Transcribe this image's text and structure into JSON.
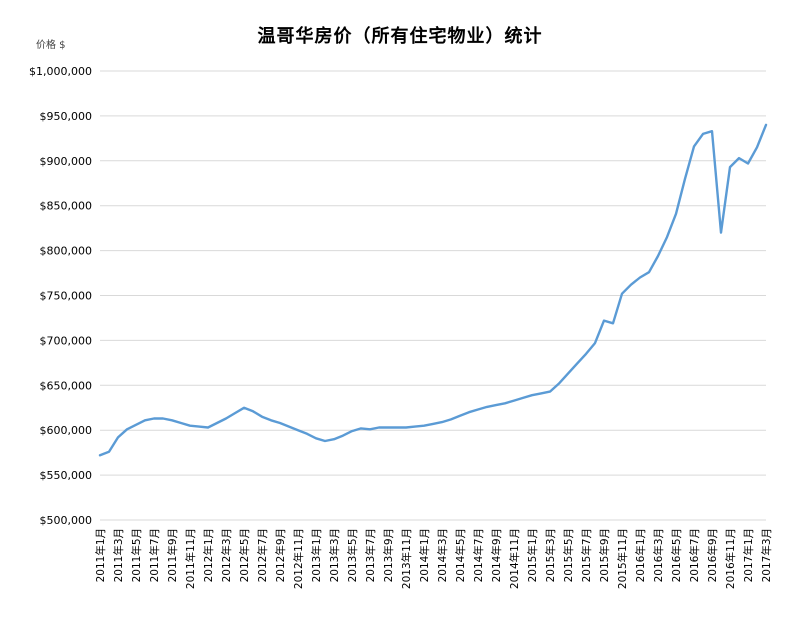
{
  "header": {
    "title": "温哥华房价（所有住宅物业）统计",
    "y_axis_unit": "价格 $"
  },
  "chart_data": {
    "type": "line",
    "title": "温哥华房价（所有住宅物业）统计",
    "ylabel": "价格 $",
    "xlabel": "",
    "ylim": [
      500000,
      1000000
    ],
    "ytick_step": 50000,
    "ytick_labels": [
      "$500,000",
      "$550,000",
      "$600,000",
      "$650,000",
      "$700,000",
      "$750,000",
      "$800,000",
      "$850,000",
      "$900,000",
      "$950,000",
      "$1,000,000"
    ],
    "x_tick_every": 2,
    "grid": "horizontal",
    "legend_position": "none",
    "line_color": "#5b9bd5",
    "grid_color": "#d9d9d9",
    "x": [
      "2011年1月",
      "2011年2月",
      "2011年3月",
      "2011年4月",
      "2011年5月",
      "2011年6月",
      "2011年7月",
      "2011年8月",
      "2011年9月",
      "2011年10月",
      "2011年11月",
      "2011年12月",
      "2012年1月",
      "2012年2月",
      "2012年3月",
      "2012年4月",
      "2012年5月",
      "2012年6月",
      "2012年7月",
      "2012年8月",
      "2012年9月",
      "2012年10月",
      "2012年11月",
      "2012年12月",
      "2013年1月",
      "2013年2月",
      "2013年3月",
      "2013年4月",
      "2013年5月",
      "2013年6月",
      "2013年7月",
      "2013年8月",
      "2013年9月",
      "2013年10月",
      "2013年11月",
      "2013年12月",
      "2014年1月",
      "2014年2月",
      "2014年3月",
      "2014年4月",
      "2014年5月",
      "2014年6月",
      "2014年7月",
      "2014年8月",
      "2014年9月",
      "2014年10月",
      "2014年11月",
      "2014年12月",
      "2015年1月",
      "2015年2月",
      "2015年3月",
      "2015年4月",
      "2015年5月",
      "2015年6月",
      "2015年7月",
      "2015年8月",
      "2015年9月",
      "2015年10月",
      "2015年11月",
      "2015年12月",
      "2016年1月",
      "2016年2月",
      "2016年3月",
      "2016年4月",
      "2016年5月",
      "2016年6月",
      "2016年7月",
      "2016年8月",
      "2016年9月",
      "2016年10月",
      "2016年11月",
      "2016年12月",
      "2017年1月",
      "2017年2月",
      "2017年3月"
    ],
    "values": [
      572000,
      576000,
      592000,
      601000,
      606000,
      611000,
      613000,
      613000,
      611000,
      608000,
      605000,
      604000,
      603000,
      608000,
      613000,
      619000,
      625000,
      621000,
      615000,
      611000,
      608000,
      604000,
      600000,
      596000,
      591000,
      588000,
      590000,
      594000,
      599000,
      602000,
      601000,
      603000,
      603000,
      603000,
      603000,
      604000,
      605000,
      607000,
      609000,
      612000,
      616000,
      620000,
      623000,
      626000,
      628000,
      630000,
      633000,
      636000,
      639000,
      641000,
      643000,
      652000,
      663000,
      674000,
      685000,
      697000,
      722000,
      719000,
      752000,
      762000,
      770000,
      776000,
      794000,
      815000,
      841000,
      880000,
      916000,
      930000,
      933000,
      820000,
      893000,
      903000,
      897000,
      915000,
      940000
    ]
  }
}
